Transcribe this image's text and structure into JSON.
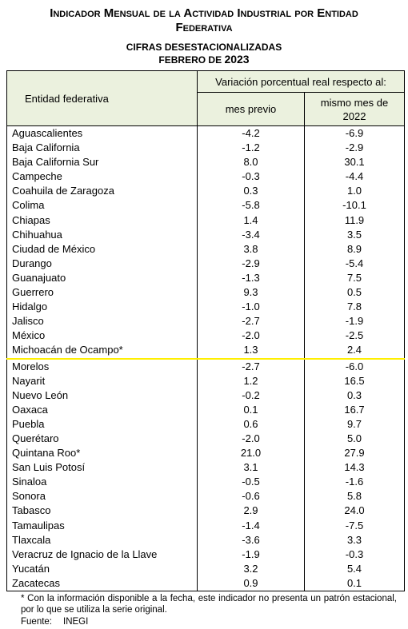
{
  "header": {
    "title": "Indicador Mensual de la Actividad Industrial por Entidad Federativa",
    "subtitle": "CIFRAS DESESTACIONALIZADAS",
    "period": "FEBRERO DE",
    "year": "2023"
  },
  "table": {
    "columns": {
      "entity": "Entidad federativa",
      "group": "Variación porcentual real respecto al:",
      "previous": "mes previo",
      "same_month": "mismo mes de 2022"
    },
    "rows": [
      [
        "Aguascalientes",
        "-4.2",
        "-6.9"
      ],
      [
        "Baja California",
        "-1.2",
        "-2.9"
      ],
      [
        "Baja California Sur",
        "8.0",
        "30.1"
      ],
      [
        "Campeche",
        "-0.3",
        "-4.4"
      ],
      [
        "Coahuila de Zaragoza",
        "0.3",
        "1.0"
      ],
      [
        "Colima",
        "-5.8",
        "-10.1"
      ],
      [
        "Chiapas",
        "1.4",
        "11.9"
      ],
      [
        "Chihuahua",
        "-3.4",
        "3.5"
      ],
      [
        "Ciudad de México",
        "3.8",
        "8.9"
      ],
      [
        "Durango",
        "-2.9",
        "-5.4"
      ],
      [
        "Guanajuato",
        "-1.3",
        "7.5"
      ],
      [
        "Guerrero",
        "9.3",
        "0.5"
      ],
      [
        "Hidalgo",
        "-1.0",
        "7.8"
      ],
      [
        "Jalisco",
        "-2.7",
        "-1.9"
      ],
      [
        "México",
        "-2.0",
        "-2.5"
      ],
      [
        "Michoacán de Ocampo*",
        "1.3",
        "2.4"
      ],
      [
        "Morelos",
        "-2.7",
        "-6.0"
      ],
      [
        "Nayarit",
        "1.2",
        "16.5"
      ],
      [
        "Nuevo León",
        "-0.2",
        "0.3"
      ],
      [
        "Oaxaca",
        "0.1",
        "16.7"
      ],
      [
        "Puebla",
        "0.6",
        "9.7"
      ],
      [
        "Querétaro",
        "-2.0",
        "5.0"
      ],
      [
        "Quintana Roo*",
        "21.0",
        "27.9"
      ],
      [
        "San Luis Potosí",
        "3.1",
        "14.3"
      ],
      [
        "Sinaloa",
        "-0.5",
        "-1.6"
      ],
      [
        "Sonora",
        "-0.6",
        "5.8"
      ],
      [
        "Tabasco",
        "2.9",
        "24.0"
      ],
      [
        "Tamaulipas",
        "-1.4",
        "-7.5"
      ],
      [
        "Tlaxcala",
        "-3.6",
        "3.3"
      ],
      [
        "Veracruz de Ignacio de la Llave",
        "-1.9",
        "-0.3"
      ],
      [
        "Yucatán",
        "3.2",
        "5.4"
      ],
      [
        "Zacatecas",
        "0.9",
        "0.1"
      ]
    ]
  },
  "footnote": "* Con la información disponible a la fecha, este indicador no presenta un patrón estacional, por lo que se utiliza la serie original.",
  "source": {
    "label": "Fuente:",
    "value": "INEGI"
  }
}
